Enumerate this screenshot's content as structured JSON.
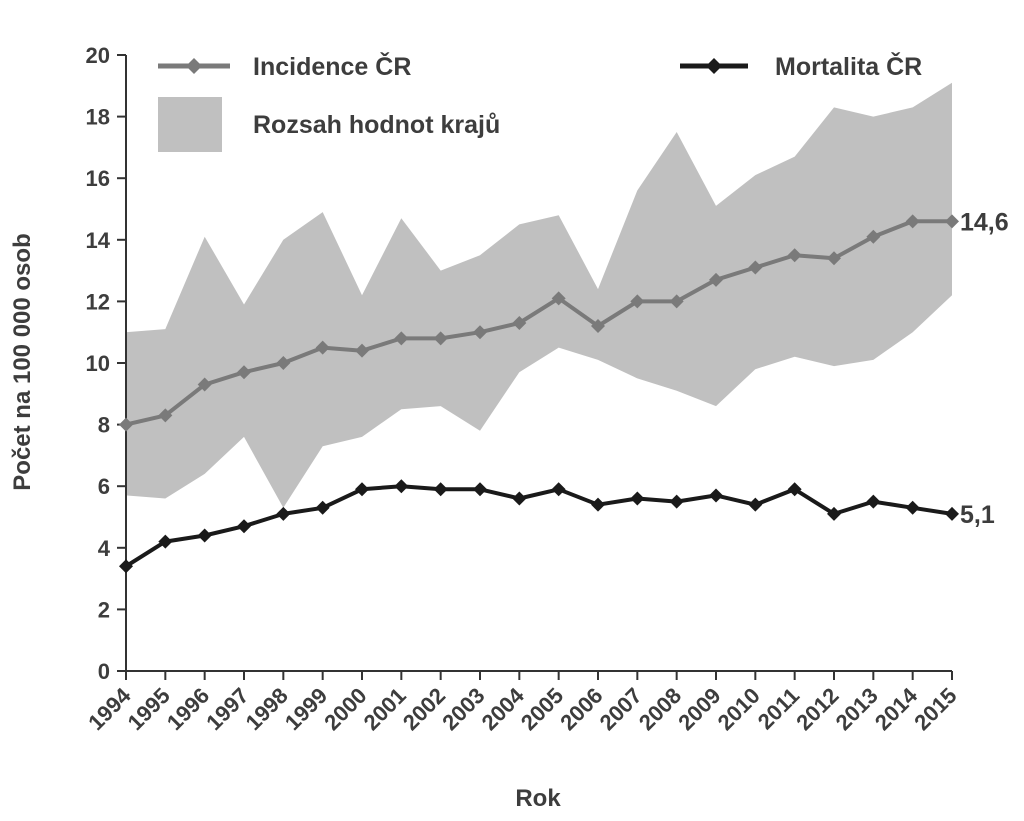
{
  "chart_data": {
    "type": "line",
    "title": "",
    "xlabel": "Rok",
    "ylabel": "Počet na 100 000 osob",
    "ylim": [
      0,
      20
    ],
    "yticks": [
      0,
      2,
      4,
      6,
      8,
      10,
      12,
      14,
      16,
      18,
      20
    ],
    "grid": false,
    "legend": "top",
    "categories": [
      "1994",
      "1995",
      "1996",
      "1997",
      "1998",
      "1999",
      "2000",
      "2001",
      "2002",
      "2003",
      "2004",
      "2005",
      "2006",
      "2007",
      "2008",
      "2009",
      "2010",
      "2011",
      "2012",
      "2013",
      "2014",
      "2015"
    ],
    "series": [
      {
        "name": "Incidence ČR",
        "kind": "line",
        "color": "#7a7a7a",
        "values": [
          8.0,
          8.3,
          9.3,
          9.7,
          10.0,
          10.5,
          10.4,
          10.8,
          10.8,
          11.0,
          11.3,
          12.1,
          11.2,
          12.0,
          12.0,
          12.7,
          13.1,
          13.5,
          13.4,
          14.1,
          14.6,
          14.6
        ],
        "end_label": "14,6"
      },
      {
        "name": "Mortalita ČR",
        "kind": "line",
        "color": "#1a1a1a",
        "values": [
          3.4,
          4.2,
          4.4,
          4.7,
          5.1,
          5.3,
          5.9,
          6.0,
          5.9,
          5.9,
          5.6,
          5.9,
          5.4,
          5.6,
          5.5,
          5.7,
          5.4,
          5.9,
          5.1,
          5.5,
          5.3,
          5.1
        ],
        "end_label": "5,1"
      },
      {
        "name": "Rozsah hodnot krajů",
        "kind": "range",
        "color": "#c0c0c0",
        "upper": [
          11.0,
          11.1,
          14.1,
          11.9,
          14.0,
          14.9,
          12.2,
          14.7,
          13.0,
          13.5,
          14.5,
          14.8,
          12.4,
          15.6,
          17.5,
          15.1,
          16.1,
          16.7,
          18.3,
          18.0,
          18.3,
          19.1
        ],
        "lower": [
          5.7,
          5.6,
          6.4,
          7.6,
          5.3,
          7.3,
          7.6,
          8.5,
          8.6,
          7.8,
          9.7,
          10.5,
          10.1,
          9.5,
          9.1,
          8.6,
          9.8,
          10.2,
          9.9,
          10.1,
          11.0,
          12.2
        ]
      }
    ]
  }
}
